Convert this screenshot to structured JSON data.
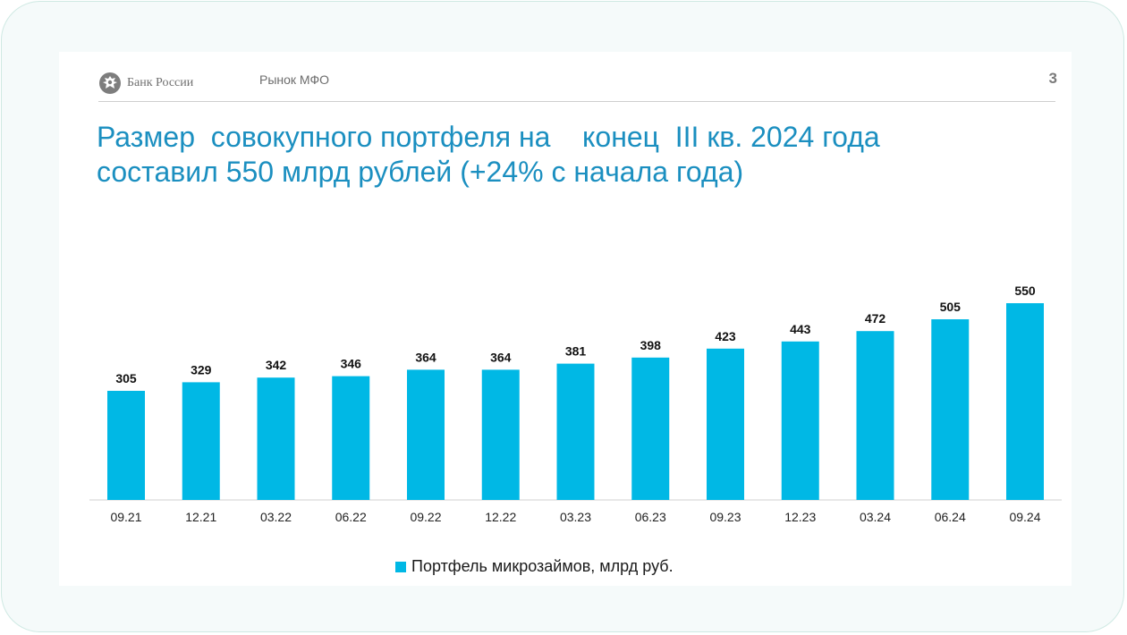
{
  "header": {
    "logo_text": "Банк России",
    "section": "Рынок МФО",
    "page_number": "3"
  },
  "title": {
    "line1": "Размер  совокупного портфеля на    конец  III кв. 2024 года",
    "line2": "составил 550 млрд рублей (+24% с начала года)"
  },
  "colors": {
    "bar": "#00b8e5",
    "title": "#1b8fc0"
  },
  "chart_data": {
    "type": "bar",
    "categories": [
      "09.21",
      "12.21",
      "03.22",
      "06.22",
      "09.22",
      "12.22",
      "03.23",
      "06.23",
      "09.23",
      "12.23",
      "03.24",
      "06.24",
      "09.24"
    ],
    "series": [
      {
        "name": "Портфель микрозаймов, млрд руб.",
        "values": [
          305,
          329,
          342,
          346,
          364,
          364,
          381,
          398,
          423,
          443,
          472,
          505,
          550
        ]
      }
    ],
    "data_labels": true,
    "ylim": [
      0,
      600
    ],
    "grid": false,
    "legend_position": "bottom-center"
  }
}
